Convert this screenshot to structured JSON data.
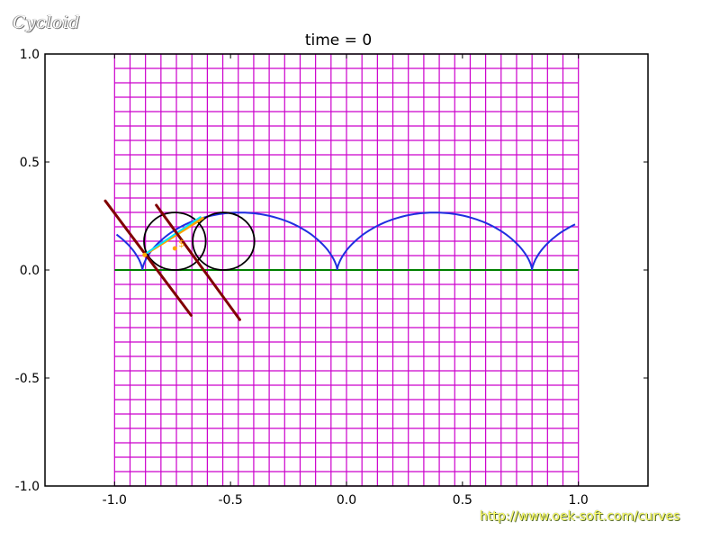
{
  "logo_text": "Cycloid",
  "url_text": "http://www.oek-soft.com/curves",
  "chart_data": {
    "type": "line",
    "title": "time =  0",
    "xlabel": "",
    "ylabel": "",
    "xlim": [
      -1.3,
      1.3
    ],
    "ylim": [
      -1.0,
      1.0
    ],
    "x_ticks": [
      "-1.0",
      "-0.5",
      "0.0",
      "0.5",
      "1.0"
    ],
    "y_ticks": [
      "1.0",
      "0.5",
      "0.0",
      "-0.5",
      "-1.0"
    ],
    "grid": {
      "x_range": [
        -1.0,
        1.0
      ],
      "y_range": [
        -1.0,
        1.0
      ],
      "step": 0.0667,
      "color": "#cc00cc"
    },
    "baseline": {
      "name": "",
      "y": 0.0,
      "x_range": [
        -1.0,
        1.0
      ],
      "color": "#008000"
    },
    "cycloid": {
      "color": "#1f2fe0",
      "radius": 0.133,
      "cusps": [
        -0.88,
        -0.04,
        0.8
      ],
      "x_range": [
        -1.0,
        1.0
      ]
    },
    "circles": [
      {
        "center": [
          -0.74,
          0.133
        ],
        "r": 0.133,
        "color": "#000000"
      },
      {
        "center": [
          -0.53,
          0.133
        ],
        "r": 0.133,
        "color": "#000000"
      }
    ],
    "segments": [
      {
        "from": [
          -0.85,
          0.085
        ],
        "to": [
          -0.62,
          0.24
        ],
        "color": "#ffa500",
        "width": 3
      },
      {
        "from": [
          -0.86,
          0.08
        ],
        "to": [
          -0.63,
          0.245
        ],
        "color": "#00e5ff",
        "width": 2
      },
      {
        "from": [
          -1.04,
          0.32
        ],
        "to": [
          -0.67,
          -0.21
        ],
        "color": "#800000",
        "width": 3
      },
      {
        "from": [
          -0.82,
          0.3
        ],
        "to": [
          -0.46,
          -0.23
        ],
        "color": "#800000",
        "width": 3
      }
    ],
    "points": [
      {
        "at": [
          -0.74,
          0.1
        ],
        "label": "$",
        "color": "#ffa500"
      },
      {
        "at": [
          -0.87,
          0.07
        ],
        "label": "",
        "color": "#ffa500"
      }
    ]
  }
}
